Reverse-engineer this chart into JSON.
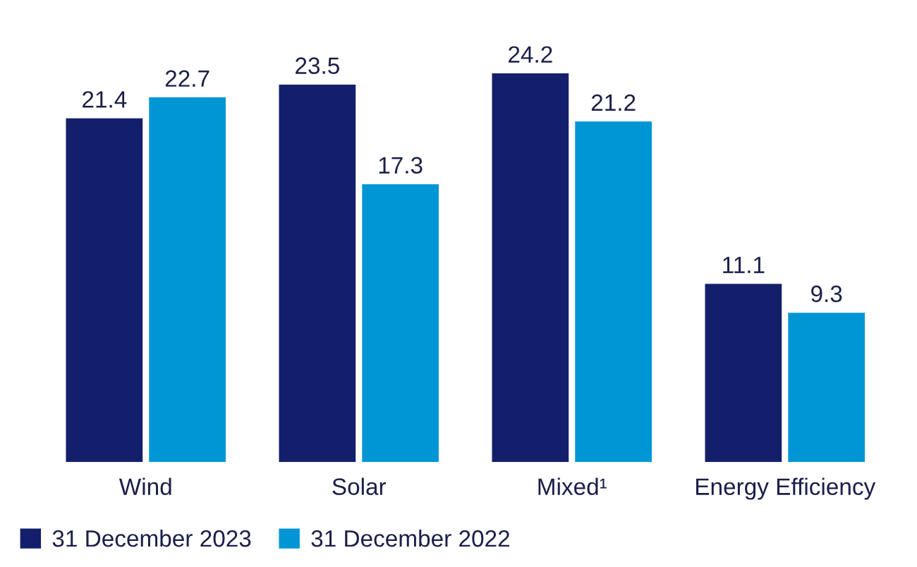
{
  "chart_data": {
    "type": "bar",
    "categories": [
      "Wind",
      "Solar",
      "Mixed¹",
      "Energy Efficiency"
    ],
    "series": [
      {
        "name": "31 December 2023",
        "color": "#141f6b",
        "values": [
          21.4,
          23.5,
          24.2,
          11.1
        ]
      },
      {
        "name": "31 December 2022",
        "color": "#0096d6",
        "values": [
          22.7,
          17.3,
          21.2,
          9.3
        ]
      }
    ],
    "data_labels": true,
    "legend": "bottom left",
    "grid": false,
    "tick_labels": "x"
  }
}
